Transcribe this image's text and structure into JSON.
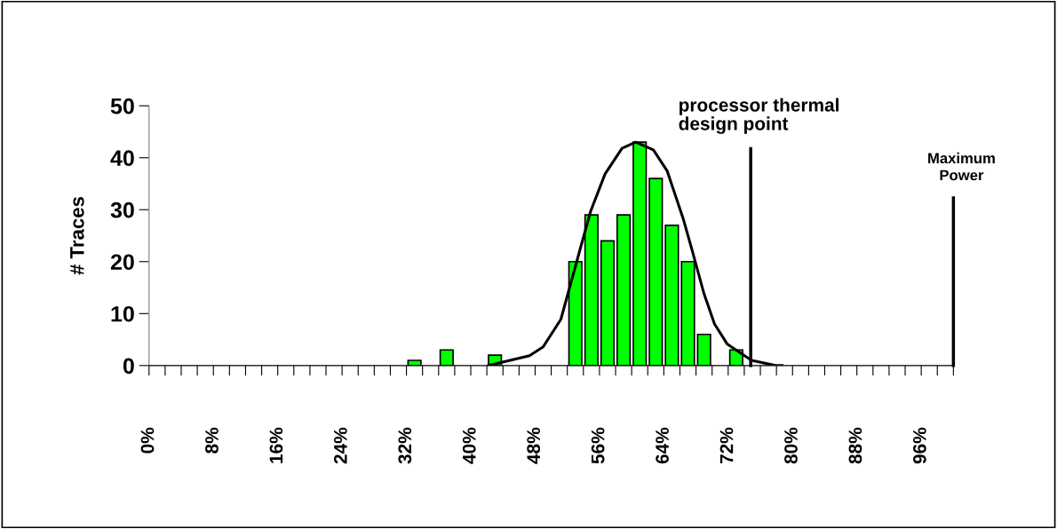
{
  "chart_data": {
    "type": "bar",
    "ylabel": "# Traces",
    "xlim": [
      0,
      100
    ],
    "ylim": [
      0,
      50
    ],
    "yticks": [
      0,
      10,
      20,
      30,
      40,
      50
    ],
    "xticks": [
      {
        "value": 0,
        "label": "0%"
      },
      {
        "value": 2,
        "label": null
      },
      {
        "value": 4,
        "label": null
      },
      {
        "value": 6,
        "label": null
      },
      {
        "value": 8,
        "label": "8%"
      },
      {
        "value": 10,
        "label": null
      },
      {
        "value": 12,
        "label": null
      },
      {
        "value": 14,
        "label": null
      },
      {
        "value": 16,
        "label": "16%"
      },
      {
        "value": 18,
        "label": null
      },
      {
        "value": 20,
        "label": null
      },
      {
        "value": 22,
        "label": null
      },
      {
        "value": 24,
        "label": "24%"
      },
      {
        "value": 26,
        "label": null
      },
      {
        "value": 28,
        "label": null
      },
      {
        "value": 30,
        "label": null
      },
      {
        "value": 32,
        "label": "32%"
      },
      {
        "value": 34,
        "label": null
      },
      {
        "value": 36,
        "label": null
      },
      {
        "value": 38,
        "label": null
      },
      {
        "value": 40,
        "label": "40%"
      },
      {
        "value": 42,
        "label": null
      },
      {
        "value": 44,
        "label": null
      },
      {
        "value": 46,
        "label": null
      },
      {
        "value": 48,
        "label": "48%"
      },
      {
        "value": 50,
        "label": null
      },
      {
        "value": 52,
        "label": null
      },
      {
        "value": 54,
        "label": null
      },
      {
        "value": 56,
        "label": "56%"
      },
      {
        "value": 58,
        "label": null
      },
      {
        "value": 60,
        "label": null
      },
      {
        "value": 62,
        "label": null
      },
      {
        "value": 64,
        "label": "64%"
      },
      {
        "value": 66,
        "label": null
      },
      {
        "value": 68,
        "label": null
      },
      {
        "value": 70,
        "label": null
      },
      {
        "value": 72,
        "label": "72%"
      },
      {
        "value": 74,
        "label": null
      },
      {
        "value": 76,
        "label": null
      },
      {
        "value": 78,
        "label": null
      },
      {
        "value": 80,
        "label": "80%"
      },
      {
        "value": 82,
        "label": null
      },
      {
        "value": 84,
        "label": null
      },
      {
        "value": 86,
        "label": null
      },
      {
        "value": 88,
        "label": "88%"
      },
      {
        "value": 90,
        "label": null
      },
      {
        "value": 92,
        "label": null
      },
      {
        "value": 94,
        "label": null
      },
      {
        "value": 96,
        "label": "96%"
      },
      {
        "value": 98,
        "label": null
      },
      {
        "value": 100,
        "label": null
      }
    ],
    "series": [
      {
        "color": "#00ff00",
        "x": [
          33,
          37,
          43,
          53,
          55,
          57,
          59,
          61,
          63,
          65,
          67,
          69,
          73
        ],
        "values": [
          1,
          3,
          2,
          20,
          29,
          24,
          29,
          43,
          36,
          27,
          20,
          6,
          3
        ]
      },
      {
        "type": "line",
        "color": "#000000",
        "x": [
          42.2,
          47.3,
          49.0,
          51.2,
          53.7,
          54.9,
          56.7,
          58.8,
          60.5,
          62.7,
          64.4,
          66.4,
          67.5,
          69.0,
          70.3,
          71.9,
          74.9,
          77.9,
          78.7
        ],
        "values": [
          0,
          1.9,
          3.6,
          8.9,
          23,
          29.7,
          36.9,
          41.8,
          43,
          41.5,
          37.5,
          28.3,
          22.3,
          13.8,
          8.0,
          4.1,
          1.0,
          0,
          0
        ]
      }
    ],
    "ref_lines": [
      {
        "axis": "x",
        "value": 74.8,
        "label": "processor thermal\ndesign point",
        "color": "#000000"
      },
      {
        "axis": "x",
        "value": 100,
        "label": "Maximum\nPower",
        "color": "#000000"
      }
    ],
    "legend": false,
    "grid": false
  }
}
